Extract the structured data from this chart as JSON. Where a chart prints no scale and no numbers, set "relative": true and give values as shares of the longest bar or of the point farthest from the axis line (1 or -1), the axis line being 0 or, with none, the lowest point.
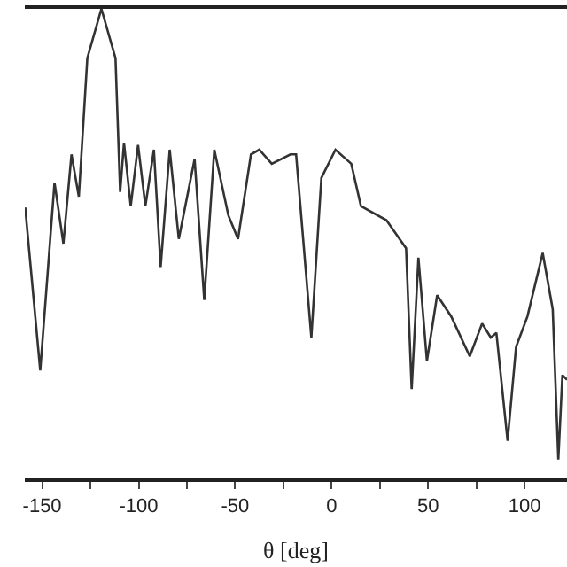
{
  "chart_data": {
    "type": "line",
    "relative": true,
    "xlabel": "θ [deg]",
    "x": [
      -158.8,
      -151,
      -143.6,
      -139,
      -134.8,
      -131,
      -126.6,
      -119.3,
      -112,
      -109.6,
      -107.6,
      -104.1,
      -100.3,
      -96.5,
      -92.1,
      -88.6,
      -83.9,
      -79.2,
      -71,
      -66,
      -60.8,
      -53.5,
      -48.5,
      -41.8,
      -37.5,
      -31,
      -21.3,
      -18.4,
      -10.5,
      -5.3,
      2,
      10.2,
      15.2,
      28.4,
      38.6,
      41.5,
      45,
      49.4,
      54.7,
      62,
      71.6,
      78,
      82.5,
      85.4,
      91.2,
      95.6,
      101.5,
      109.4,
      114.6,
      117.5,
      119.6,
      122
    ],
    "series": [
      {
        "color": "#333333",
        "values": [
          0.577,
          0.23,
          0.63,
          0.5,
          0.69,
          0.6,
          0.895,
          1,
          0.895,
          0.61,
          0.715,
          0.58,
          0.71,
          0.58,
          0.7,
          0.45,
          0.7,
          0.51,
          0.68,
          0.38,
          0.7,
          0.56,
          0.51,
          0.69,
          0.7,
          0.67,
          0.69,
          0.69,
          0.3,
          0.64,
          0.7,
          0.67,
          0.58,
          0.55,
          0.49,
          0.19,
          0.47,
          0.25,
          0.39,
          0.345,
          0.26,
          0.33,
          0.3,
          0.31,
          0.08,
          0.28,
          0.345,
          0.48,
          0.36,
          0.04,
          0.22,
          0.21
        ]
      }
    ],
    "xlim": [
      -159,
      122
    ],
    "xticks": [
      -150,
      {
        "value": -125,
        "label": null
      },
      -100,
      {
        "value": -75,
        "label": null
      },
      -50,
      {
        "value": -25,
        "label": null
      },
      0,
      {
        "value": 25,
        "label": null
      },
      50,
      {
        "value": 75,
        "label": null
      },
      100
    ],
    "marker": "none",
    "line_style": "solid"
  }
}
